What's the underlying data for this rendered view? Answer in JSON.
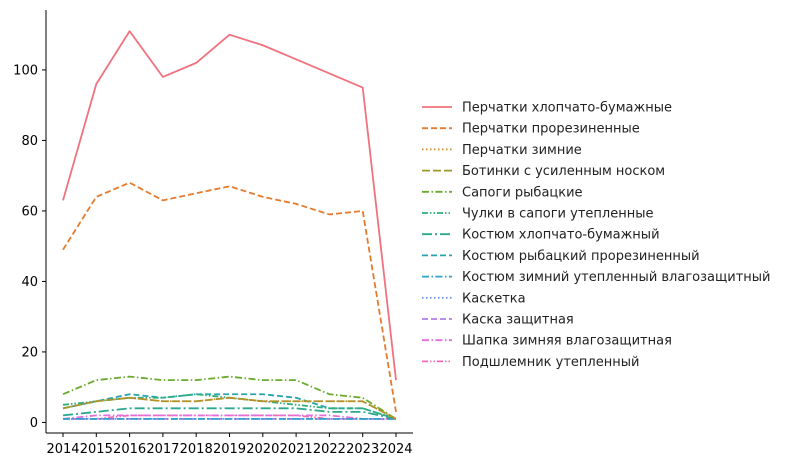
{
  "chart_data": {
    "type": "line",
    "title": "",
    "xlabel": "",
    "ylabel": "",
    "x": [
      2014,
      2015,
      2016,
      2017,
      2018,
      2019,
      2020,
      2021,
      2022,
      2023,
      2024
    ],
    "ylim": [
      -3,
      117
    ],
    "yticks": [
      0,
      20,
      40,
      60,
      80,
      100
    ],
    "grid": false,
    "legend_position": "right",
    "series": [
      {
        "name": "Перчатки хлопчато-бумажные",
        "color": "#f0727e",
        "dash": "solid",
        "values": [
          63,
          96,
          111,
          98,
          102,
          110,
          107,
          103,
          99,
          95,
          12
        ]
      },
      {
        "name": "Перчатки прорезиненные",
        "color": "#e47b2f",
        "dash": "dashed",
        "values": [
          49,
          64,
          68,
          63,
          65,
          67,
          64,
          62,
          59,
          60,
          3
        ]
      },
      {
        "name": "Перчатки зимние",
        "color": "#c98b2a",
        "dash": "dotted",
        "values": [
          4,
          6,
          7,
          6,
          6,
          7,
          6,
          6,
          6,
          6,
          1
        ]
      },
      {
        "name": "Ботинки с усиленным носком",
        "color": "#9a9a2a",
        "dash": "dashed-long",
        "values": [
          4,
          6,
          7,
          6,
          6,
          7,
          6,
          6,
          6,
          6,
          1
        ]
      },
      {
        "name": "Сапоги рыбацкие",
        "color": "#6aab2e",
        "dash": "dashdot",
        "values": [
          8,
          12,
          13,
          12,
          12,
          13,
          12,
          12,
          8,
          7,
          1
        ]
      },
      {
        "name": "Чулки в сапоги утепленные",
        "color": "#2fb07a",
        "dash": "dashdotdot",
        "values": [
          5,
          6,
          7,
          7,
          8,
          7,
          6,
          5,
          4,
          4,
          1
        ]
      },
      {
        "name": "Костюм хлопчато-бумажный",
        "color": "#2aa890",
        "dash": "dashdot-long",
        "values": [
          2,
          3,
          4,
          4,
          4,
          4,
          4,
          4,
          3,
          3,
          1
        ]
      },
      {
        "name": "Костюм рыбацкий прорезиненный",
        "color": "#28a3b0",
        "dash": "dashed",
        "values": [
          4,
          6,
          8,
          7,
          8,
          8,
          8,
          7,
          4,
          4,
          1
        ]
      },
      {
        "name": "Костюм зимний утепленный влагозащитный",
        "color": "#2ea2cd",
        "dash": "dashdot",
        "values": [
          1,
          1,
          1,
          1,
          1,
          1,
          1,
          1,
          1,
          1,
          1
        ]
      },
      {
        "name": "Каскетка",
        "color": "#6b8fe8",
        "dash": "dotted",
        "values": [
          1,
          1,
          1,
          1,
          1,
          1,
          1,
          1,
          1,
          1,
          1
        ]
      },
      {
        "name": "Каска защитная",
        "color": "#b07ee8",
        "dash": "dashed",
        "values": [
          1,
          1,
          1,
          1,
          1,
          1,
          1,
          1,
          1,
          1,
          1
        ]
      },
      {
        "name": "Шапка зимняя влагозащитная",
        "color": "#e36ee0",
        "dash": "dashdot",
        "values": [
          1,
          2,
          2,
          2,
          2,
          2,
          2,
          2,
          2,
          1,
          1
        ]
      },
      {
        "name": "Подшлемник утепленный",
        "color": "#f26cb3",
        "dash": "dashdotdot",
        "values": [
          1,
          1,
          2,
          2,
          2,
          2,
          2,
          2,
          1,
          1,
          1
        ]
      }
    ]
  }
}
